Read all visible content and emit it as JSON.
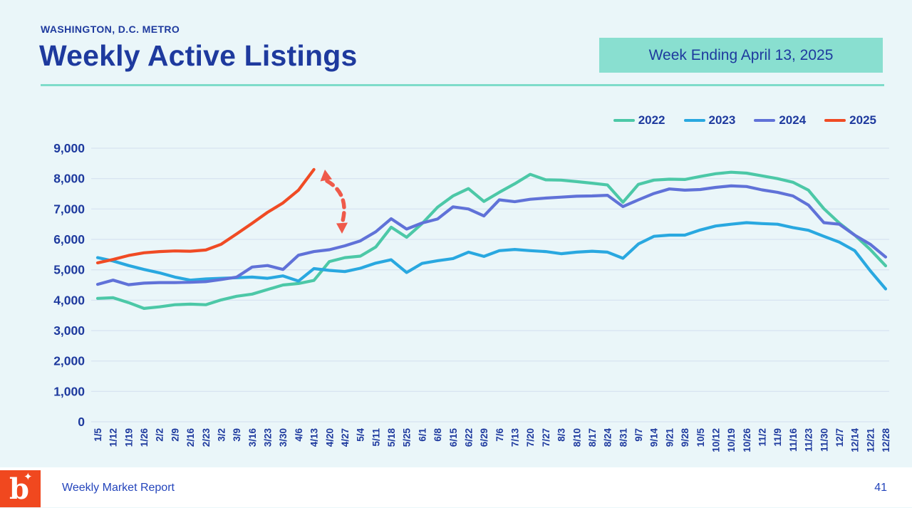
{
  "page": {
    "kicker": "WASHINGTON, D.C. METRO",
    "title": "Weekly Active Listings",
    "badge": "Week Ending April 13, 2025",
    "footer": {
      "logo_letter": "b",
      "logo_star": "✦",
      "report_name": "Weekly Market Report",
      "page_number": "41"
    }
  },
  "colors": {
    "background": "#eaf6f9",
    "navy_text": "#1e3a9e",
    "teal_accent": "#7edcca",
    "badge_fill": "#89dfd0",
    "gridline": "#d8e4f2",
    "logo_orange": "#f0481f",
    "footer_blue": "#2344bb",
    "annotation_arrow": "#ef5a4a"
  },
  "chart_data": {
    "type": "line",
    "title": "Weekly Active Listings",
    "xlabel": "",
    "ylabel": "",
    "ylim": [
      0,
      9000
    ],
    "y_ticks": [
      0,
      1000,
      2000,
      3000,
      4000,
      5000,
      6000,
      7000,
      8000,
      9000
    ],
    "grid": true,
    "legend_position": "top-right",
    "x_labels": [
      "1/5",
      "1/12",
      "1/19",
      "1/26",
      "2/2",
      "2/9",
      "2/16",
      "2/23",
      "3/2",
      "3/9",
      "3/16",
      "3/23",
      "3/30",
      "4/6",
      "4/13",
      "4/20",
      "4/27",
      "5/4",
      "5/11",
      "5/18",
      "5/25",
      "6/1",
      "6/8",
      "6/15",
      "6/22",
      "6/29",
      "7/6",
      "7/13",
      "7/20",
      "7/27",
      "8/3",
      "8/10",
      "8/17",
      "8/24",
      "8/31",
      "9/7",
      "9/14",
      "9/21",
      "9/28",
      "10/5",
      "10/12",
      "10/19",
      "10/26",
      "11/2",
      "11/9",
      "11/16",
      "11/23",
      "11/30",
      "12/7",
      "12/14",
      "12/21",
      "12/28"
    ],
    "series": [
      {
        "name": "2022",
        "color": "#4cc8a7",
        "values": [
          4060,
          4080,
          3920,
          3730,
          3780,
          3850,
          3870,
          3850,
          4010,
          4130,
          4200,
          4350,
          4500,
          4550,
          4650,
          5270,
          5400,
          5450,
          5750,
          6400,
          6070,
          6520,
          7060,
          7430,
          7670,
          7250,
          7550,
          7830,
          8140,
          7960,
          7950,
          7900,
          7850,
          7790,
          7220,
          7810,
          7950,
          7980,
          7970,
          8070,
          8160,
          8210,
          8180,
          8090,
          8000,
          7880,
          7620,
          7010,
          6540,
          6140,
          5670,
          5130
        ]
      },
      {
        "name": "2023",
        "color": "#29a8e0",
        "values": [
          5400,
          5290,
          5140,
          5010,
          4900,
          4760,
          4660,
          4700,
          4720,
          4740,
          4760,
          4720,
          4800,
          4630,
          5040,
          4980,
          4940,
          5050,
          5220,
          5330,
          4910,
          5210,
          5300,
          5370,
          5580,
          5440,
          5630,
          5670,
          5630,
          5600,
          5530,
          5580,
          5610,
          5580,
          5380,
          5850,
          6100,
          6140,
          6140,
          6310,
          6440,
          6500,
          6550,
          6520,
          6500,
          6390,
          6300,
          6100,
          5910,
          5630,
          4970,
          4370
        ]
      },
      {
        "name": "2024",
        "color": "#6072d8",
        "values": [
          4520,
          4660,
          4510,
          4560,
          4580,
          4580,
          4590,
          4610,
          4680,
          4760,
          5090,
          5140,
          5010,
          5480,
          5600,
          5660,
          5790,
          5950,
          6250,
          6680,
          6340,
          6540,
          6670,
          7070,
          7000,
          6770,
          7300,
          7240,
          7320,
          7360,
          7390,
          7420,
          7430,
          7450,
          7080,
          7300,
          7510,
          7660,
          7620,
          7640,
          7710,
          7760,
          7740,
          7630,
          7550,
          7430,
          7130,
          6550,
          6500,
          6140,
          5840,
          5420
        ]
      },
      {
        "name": "2025",
        "color": "#f04b24",
        "values": [
          5230,
          5340,
          5470,
          5560,
          5600,
          5620,
          5610,
          5650,
          5840,
          6180,
          6530,
          6890,
          7200,
          7620,
          8300
        ]
      }
    ],
    "annotation": {
      "type": "dashed-curved-double-arrow",
      "color": "#ef5a4a",
      "near_x_label": "4/20",
      "from_value": 8300,
      "to_value": 6300
    }
  }
}
